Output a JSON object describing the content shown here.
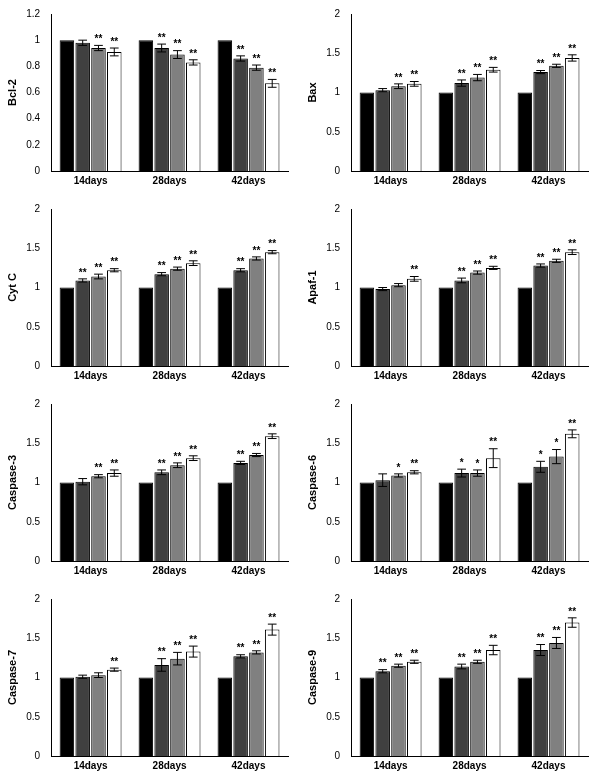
{
  "chart_data": [
    {
      "type": "bar",
      "y_label": "Bcl-2",
      "categories": [
        "14days",
        "28days",
        "42days"
      ],
      "ylim": [
        0,
        1.2
      ],
      "yticks": [
        0,
        0.2,
        0.4,
        0.6,
        0.8,
        1,
        1.2
      ],
      "grid": false,
      "series": [
        {
          "color": "#000000",
          "values": [
            1,
            1,
            1
          ],
          "errors": [
            0,
            0,
            0
          ],
          "annotations": [
            null,
            null,
            null
          ]
        },
        {
          "color": "#404040",
          "values": [
            0.98,
            0.94,
            0.86
          ],
          "errors": [
            0.02,
            0.03,
            0.02
          ],
          "annotations": [
            null,
            "**",
            "**"
          ]
        },
        {
          "color": "#808080",
          "values": [
            0.94,
            0.89,
            0.79
          ],
          "errors": [
            0.02,
            0.03,
            0.02
          ],
          "annotations": [
            "**",
            "**",
            "**"
          ]
        },
        {
          "color": "#ffffff",
          "values": [
            0.91,
            0.83,
            0.67
          ],
          "errors": [
            0.03,
            0.02,
            0.03
          ],
          "annotations": [
            "**",
            "**",
            "**"
          ]
        }
      ]
    },
    {
      "type": "bar",
      "y_label": "Bax",
      "categories": [
        "14days",
        "28days",
        "42days"
      ],
      "ylim": [
        0,
        2
      ],
      "yticks": [
        0,
        0.5,
        1,
        1.5,
        2
      ],
      "grid": false,
      "series": [
        {
          "color": "#000000",
          "values": [
            1,
            1,
            1
          ],
          "errors": [
            0,
            0,
            0
          ],
          "annotations": [
            null,
            null,
            null
          ]
        },
        {
          "color": "#404040",
          "values": [
            1.03,
            1.12,
            1.26
          ],
          "errors": [
            0.02,
            0.04,
            0.02
          ],
          "annotations": [
            null,
            "**",
            "**"
          ]
        },
        {
          "color": "#808080",
          "values": [
            1.08,
            1.19,
            1.34
          ],
          "errors": [
            0.03,
            0.04,
            0.02
          ],
          "annotations": [
            "**",
            "**",
            "**"
          ]
        },
        {
          "color": "#ffffff",
          "values": [
            1.11,
            1.29,
            1.44
          ],
          "errors": [
            0.03,
            0.03,
            0.04
          ],
          "annotations": [
            "**",
            "**",
            "**"
          ]
        }
      ]
    },
    {
      "type": "bar",
      "y_label": "Cyt C",
      "categories": [
        "14days",
        "28days",
        "42days"
      ],
      "ylim": [
        0,
        2
      ],
      "yticks": [
        0,
        0.5,
        1,
        1.5,
        2
      ],
      "grid": false,
      "series": [
        {
          "color": "#000000",
          "values": [
            1,
            1,
            1
          ],
          "errors": [
            0,
            0,
            0
          ],
          "annotations": [
            null,
            null,
            null
          ]
        },
        {
          "color": "#404040",
          "values": [
            1.09,
            1.17,
            1.22
          ],
          "errors": [
            0.02,
            0.02,
            0.02
          ],
          "annotations": [
            "**",
            "**",
            "**"
          ]
        },
        {
          "color": "#808080",
          "values": [
            1.14,
            1.24,
            1.37
          ],
          "errors": [
            0.03,
            0.02,
            0.02
          ],
          "annotations": [
            "**",
            "**",
            "**"
          ]
        },
        {
          "color": "#ffffff",
          "values": [
            1.22,
            1.31,
            1.45
          ],
          "errors": [
            0.02,
            0.03,
            0.02
          ],
          "annotations": [
            "**",
            "**",
            "**"
          ]
        }
      ]
    },
    {
      "type": "bar",
      "y_label": "Apaf-1",
      "categories": [
        "14days",
        "28days",
        "42days"
      ],
      "ylim": [
        0,
        2
      ],
      "yticks": [
        0,
        0.5,
        1,
        1.5,
        2
      ],
      "grid": false,
      "series": [
        {
          "color": "#000000",
          "values": [
            1,
            1,
            1
          ],
          "errors": [
            0,
            0,
            0
          ],
          "annotations": [
            null,
            null,
            null
          ]
        },
        {
          "color": "#404040",
          "values": [
            0.98,
            1.09,
            1.28
          ],
          "errors": [
            0.02,
            0.03,
            0.02
          ],
          "annotations": [
            null,
            "**",
            "**"
          ]
        },
        {
          "color": "#808080",
          "values": [
            1.03,
            1.19,
            1.34
          ],
          "errors": [
            0.02,
            0.02,
            0.02
          ],
          "annotations": [
            null,
            "**",
            "**"
          ]
        },
        {
          "color": "#ffffff",
          "values": [
            1.11,
            1.25,
            1.45
          ],
          "errors": [
            0.03,
            0.02,
            0.03
          ],
          "annotations": [
            "**",
            "**",
            "**"
          ]
        }
      ]
    },
    {
      "type": "bar",
      "y_label": "Caspase-3",
      "categories": [
        "14days",
        "28days",
        "42days"
      ],
      "ylim": [
        0,
        2
      ],
      "yticks": [
        0,
        0.5,
        1,
        1.5,
        2
      ],
      "grid": false,
      "series": [
        {
          "color": "#000000",
          "values": [
            1,
            1,
            1
          ],
          "errors": [
            0,
            0,
            0
          ],
          "annotations": [
            null,
            null,
            null
          ]
        },
        {
          "color": "#404040",
          "values": [
            1.01,
            1.13,
            1.25
          ],
          "errors": [
            0.04,
            0.03,
            0.02
          ],
          "annotations": [
            null,
            "**",
            "**"
          ]
        },
        {
          "color": "#808080",
          "values": [
            1.08,
            1.22,
            1.35
          ],
          "errors": [
            0.02,
            0.03,
            0.02
          ],
          "annotations": [
            "**",
            "**",
            "**"
          ]
        },
        {
          "color": "#ffffff",
          "values": [
            1.12,
            1.31,
            1.59
          ],
          "errors": [
            0.04,
            0.03,
            0.03
          ],
          "annotations": [
            "**",
            "**",
            "**"
          ]
        }
      ]
    },
    {
      "type": "bar",
      "y_label": "Caspase-6",
      "categories": [
        "14days",
        "28days",
        "42days"
      ],
      "ylim": [
        0,
        2
      ],
      "yticks": [
        0,
        0.5,
        1,
        1.5,
        2
      ],
      "grid": false,
      "series": [
        {
          "color": "#000000",
          "values": [
            1,
            1,
            1
          ],
          "errors": [
            0,
            0,
            0
          ],
          "annotations": [
            null,
            null,
            null
          ]
        },
        {
          "color": "#404040",
          "values": [
            1.03,
            1.12,
            1.2
          ],
          "errors": [
            0.08,
            0.05,
            0.07
          ],
          "annotations": [
            null,
            "*",
            "*"
          ]
        },
        {
          "color": "#808080",
          "values": [
            1.09,
            1.12,
            1.33
          ],
          "errors": [
            0.02,
            0.04,
            0.09
          ],
          "annotations": [
            "*",
            "*",
            "*"
          ]
        },
        {
          "color": "#ffffff",
          "values": [
            1.13,
            1.31,
            1.62
          ],
          "errors": [
            0.02,
            0.12,
            0.05
          ],
          "annotations": [
            "**",
            "**",
            "**"
          ]
        }
      ]
    },
    {
      "type": "bar",
      "y_label": "Caspase-7",
      "categories": [
        "14days",
        "28days",
        "42days"
      ],
      "ylim": [
        0,
        2
      ],
      "yticks": [
        0,
        0.5,
        1,
        1.5,
        2
      ],
      "grid": false,
      "series": [
        {
          "color": "#000000",
          "values": [
            1,
            1,
            1
          ],
          "errors": [
            0,
            0,
            0
          ],
          "annotations": [
            null,
            null,
            null
          ]
        },
        {
          "color": "#404040",
          "values": [
            1.01,
            1.16,
            1.27
          ],
          "errors": [
            0.02,
            0.08,
            0.02
          ],
          "annotations": [
            null,
            "**",
            "**"
          ]
        },
        {
          "color": "#808080",
          "values": [
            1.03,
            1.24,
            1.32
          ],
          "errors": [
            0.03,
            0.08,
            0.02
          ],
          "annotations": [
            null,
            "**",
            "**"
          ]
        },
        {
          "color": "#ffffff",
          "values": [
            1.1,
            1.33,
            1.61
          ],
          "errors": [
            0.02,
            0.07,
            0.07
          ],
          "annotations": [
            "**",
            "**",
            "**"
          ]
        }
      ]
    },
    {
      "type": "bar",
      "y_label": "Caspase-9",
      "categories": [
        "14days",
        "28days",
        "42days"
      ],
      "ylim": [
        0,
        2
      ],
      "yticks": [
        0,
        0.5,
        1,
        1.5,
        2
      ],
      "grid": false,
      "series": [
        {
          "color": "#000000",
          "values": [
            1,
            1,
            1
          ],
          "errors": [
            0,
            0,
            0
          ],
          "annotations": [
            null,
            null,
            null
          ]
        },
        {
          "color": "#404040",
          "values": [
            1.08,
            1.14,
            1.35
          ],
          "errors": [
            0.02,
            0.03,
            0.07
          ],
          "annotations": [
            "**",
            "**",
            "**"
          ]
        },
        {
          "color": "#808080",
          "values": [
            1.15,
            1.2,
            1.44
          ],
          "errors": [
            0.02,
            0.02,
            0.07
          ],
          "annotations": [
            "**",
            "**",
            "**"
          ]
        },
        {
          "color": "#ffffff",
          "values": [
            1.2,
            1.35,
            1.7
          ],
          "errors": [
            0.02,
            0.06,
            0.06
          ],
          "annotations": [
            "**",
            "**",
            "**"
          ]
        }
      ]
    }
  ]
}
